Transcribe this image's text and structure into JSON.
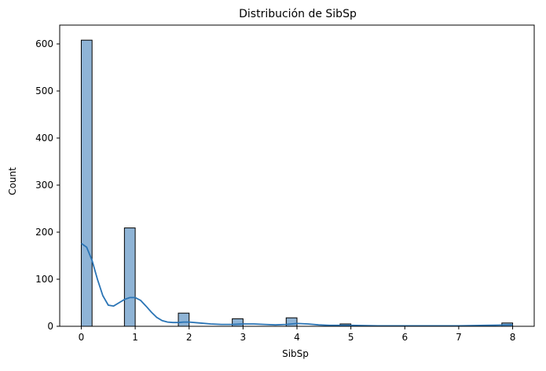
{
  "chart_data": {
    "type": "bar",
    "title": "Distribución de SibSp",
    "xlabel": "SibSp",
    "ylabel": "Count",
    "xlim": [
      -0.4,
      8.4
    ],
    "ylim": [
      0,
      640
    ],
    "xticks": [
      0,
      1,
      2,
      3,
      4,
      5,
      6,
      7,
      8
    ],
    "yticks": [
      0,
      100,
      200,
      300,
      400,
      500,
      600
    ],
    "bin_width": 0.2,
    "bins": [
      {
        "x_start": 0.0,
        "x_end": 0.2,
        "count": 608
      },
      {
        "x_start": 0.8,
        "x_end": 1.0,
        "count": 209
      },
      {
        "x_start": 1.8,
        "x_end": 2.0,
        "count": 28
      },
      {
        "x_start": 2.8,
        "x_end": 3.0,
        "count": 16
      },
      {
        "x_start": 3.8,
        "x_end": 4.0,
        "count": 18
      },
      {
        "x_start": 4.8,
        "x_end": 5.0,
        "count": 5
      },
      {
        "x_start": 7.8,
        "x_end": 8.0,
        "count": 7
      }
    ],
    "kde": {
      "x": [
        0.0,
        0.1,
        0.2,
        0.3,
        0.4,
        0.5,
        0.6,
        0.7,
        0.8,
        0.9,
        1.0,
        1.1,
        1.2,
        1.3,
        1.4,
        1.5,
        1.6,
        1.7,
        1.8,
        1.9,
        2.0,
        2.2,
        2.4,
        2.6,
        2.8,
        3.0,
        3.2,
        3.4,
        3.6,
        3.8,
        4.0,
        4.2,
        4.4,
        4.6,
        4.8,
        5.0,
        5.5,
        6.0,
        6.5,
        7.0,
        7.5,
        8.0
      ],
      "y": [
        176,
        168,
        140,
        100,
        65,
        45,
        43,
        50,
        57,
        61,
        61,
        55,
        43,
        30,
        19,
        12,
        9,
        8,
        8,
        9,
        9,
        7,
        5,
        4,
        4,
        5,
        5,
        4,
        3,
        4,
        6,
        5,
        3,
        2,
        2,
        2,
        1,
        1,
        1,
        1,
        2,
        3
      ]
    },
    "bar_color": "#8fb4d6",
    "bar_edge_color": "#000000",
    "kde_color": "#2a74b5",
    "grid": false,
    "legend": "none"
  }
}
